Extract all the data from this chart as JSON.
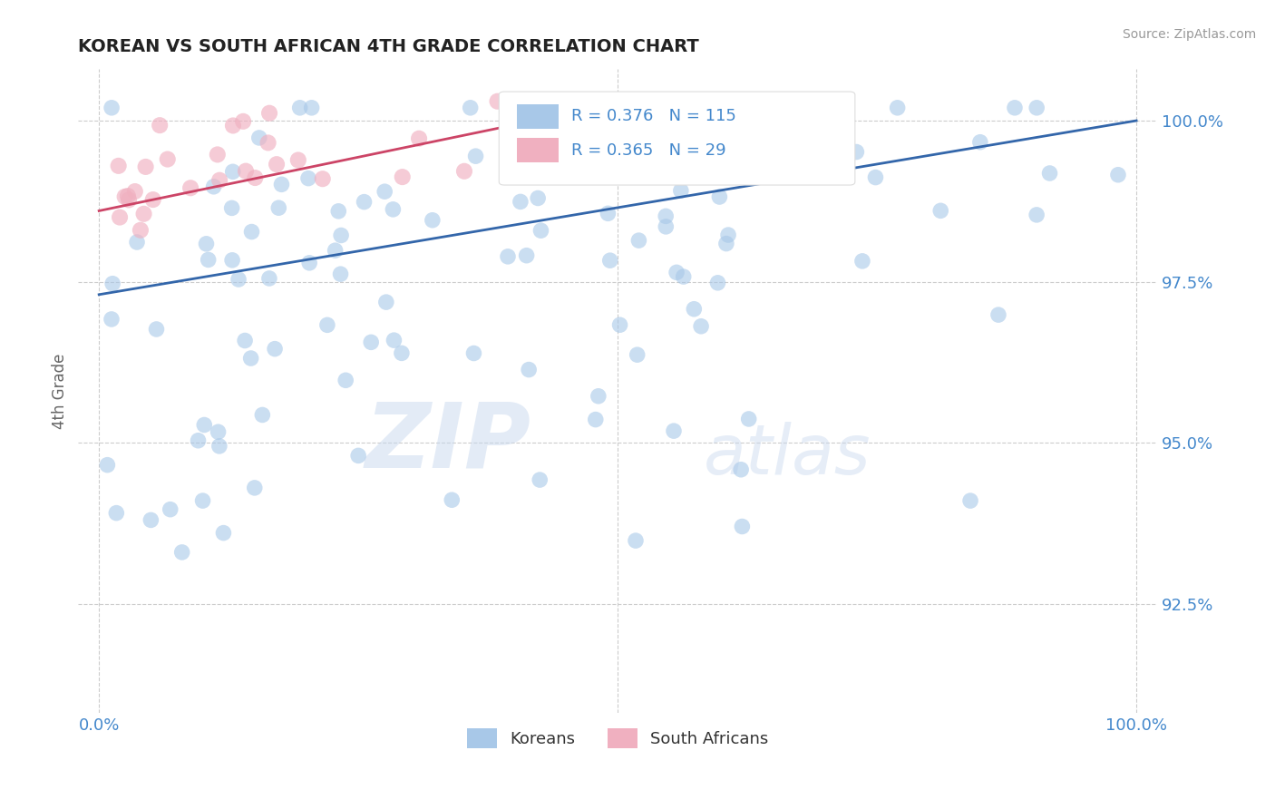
{
  "title": "KOREAN VS SOUTH AFRICAN 4TH GRADE CORRELATION CHART",
  "source_text": "Source: ZipAtlas.com",
  "ylabel": "4th Grade",
  "xlim": [
    -0.02,
    1.02
  ],
  "ylim": [
    0.908,
    1.008
  ],
  "yticks": [
    0.925,
    0.95,
    0.975,
    1.0
  ],
  "ytick_labels": [
    "92.5%",
    "95.0%",
    "97.5%",
    "100.0%"
  ],
  "blue_color": "#a8c8e8",
  "pink_color": "#f0b0c0",
  "blue_line_color": "#3366aa",
  "pink_line_color": "#cc4466",
  "legend_R_blue": "0.376",
  "legend_N_blue": "115",
  "legend_R_pink": "0.365",
  "legend_N_pink": "29",
  "watermark_zip": "ZIP",
  "watermark_atlas": "atlas",
  "background_color": "#ffffff",
  "grid_color": "#cccccc",
  "title_color": "#222222",
  "axis_label_color": "#666666",
  "tick_color": "#4488cc",
  "seed": 7,
  "n_blue": 115,
  "n_pink": 29
}
